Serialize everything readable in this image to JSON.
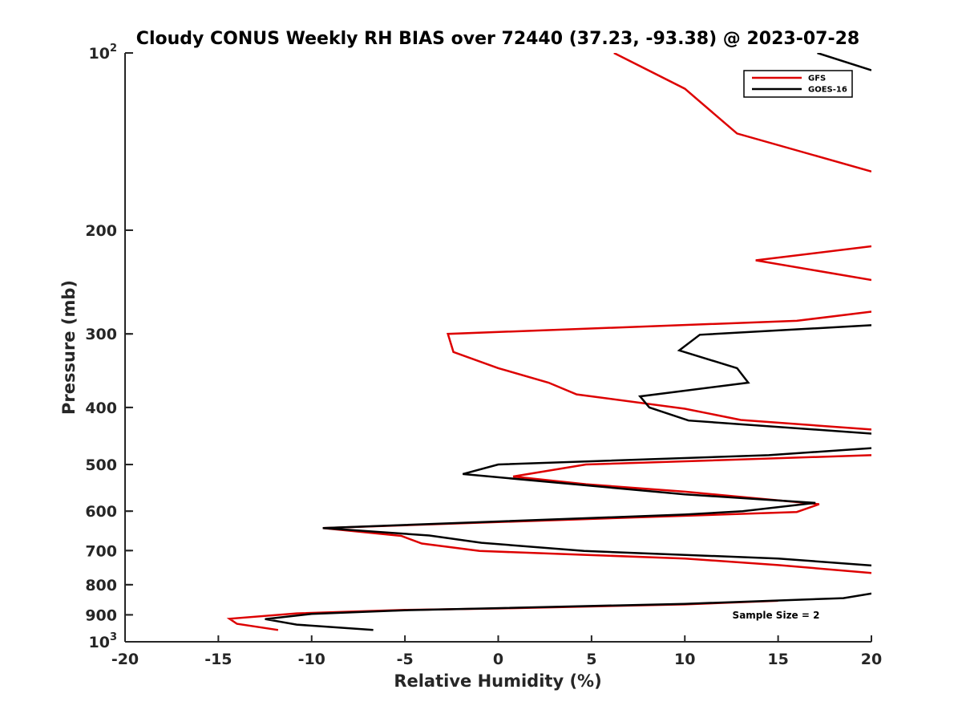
{
  "chart_data": {
    "type": "line",
    "title": "Cloudy CONUS Weekly RH BIAS over 72440 (37.23, -93.38) @ 2023-07-28",
    "xlabel": "Relative Humidity (%)",
    "ylabel": "Pressure (mb)",
    "xlim": [
      -20,
      20
    ],
    "ylim": [
      100,
      1000
    ],
    "y_scale": "log",
    "y_reversed": true,
    "xticks": [
      -20,
      -15,
      -10,
      -5,
      0,
      5,
      10,
      15,
      20
    ],
    "yticks": [
      {
        "value": 100,
        "label": "10",
        "sup": "2"
      },
      {
        "value": 200,
        "label": "200",
        "sup": ""
      },
      {
        "value": 300,
        "label": "300",
        "sup": ""
      },
      {
        "value": 400,
        "label": "400",
        "sup": ""
      },
      {
        "value": 500,
        "label": "500",
        "sup": ""
      },
      {
        "value": 600,
        "label": "600",
        "sup": ""
      },
      {
        "value": 700,
        "label": "700",
        "sup": ""
      },
      {
        "value": 800,
        "label": "800",
        "sup": ""
      },
      {
        "value": 900,
        "label": "900",
        "sup": ""
      },
      {
        "value": 1000,
        "label": "10",
        "sup": "3"
      }
    ],
    "grid": false,
    "legend_position": "top-right",
    "annotation": "Sample Size = 2",
    "series": [
      {
        "name": "GFS",
        "color": "#dd0000",
        "points": [
          [
            6.2,
            100
          ],
          [
            10,
            115
          ],
          [
            12.8,
            137
          ],
          [
            20,
            159
          ],
          null,
          [
            20,
            213
          ],
          [
            13.8,
            225
          ],
          [
            20,
            243
          ],
          null,
          [
            20,
            275
          ],
          [
            16,
            285
          ],
          [
            -2.7,
            300
          ],
          [
            -2.4,
            322
          ],
          [
            0,
            343
          ],
          [
            2.7,
            363
          ],
          [
            4.2,
            380
          ],
          [
            10,
            402
          ],
          [
            13,
            420
          ],
          [
            20,
            436
          ],
          null,
          [
            20,
            482
          ],
          [
            4.7,
            500
          ],
          [
            0.8,
            524
          ],
          [
            4.7,
            540
          ],
          [
            10,
            556
          ],
          [
            17.2,
            584
          ],
          [
            16,
            602
          ],
          [
            -9.4,
            641
          ],
          [
            -5.2,
            661
          ],
          [
            -4.1,
            681
          ],
          [
            -1,
            701
          ],
          [
            10,
            722
          ],
          [
            15,
            741
          ],
          [
            20,
            764
          ],
          null,
          [
            15,
            852
          ],
          [
            10,
            864
          ],
          [
            0,
            878
          ],
          [
            -5,
            883
          ],
          [
            -10.8,
            895
          ],
          [
            -14.4,
            914
          ],
          [
            -14,
            932
          ],
          [
            -11.8,
            955
          ]
        ]
      },
      {
        "name": "GOES-16",
        "color": "#000000",
        "points": [
          [
            17.1,
            100
          ],
          [
            20,
            107
          ],
          null,
          [
            20,
            290
          ],
          [
            10.8,
            301
          ],
          [
            9.7,
            320
          ],
          [
            12.8,
            343
          ],
          [
            13.4,
            363
          ],
          [
            7.6,
            383
          ],
          [
            8.1,
            400
          ],
          [
            10.2,
            421
          ],
          [
            20,
            443
          ],
          null,
          [
            20,
            469
          ],
          [
            14.5,
            482
          ],
          [
            0,
            500
          ],
          [
            -1.9,
            519
          ],
          [
            10,
            562
          ],
          [
            17,
            581
          ],
          [
            13.1,
            600
          ],
          [
            10,
            608
          ],
          [
            -9.4,
            641
          ],
          [
            -3.7,
            660
          ],
          [
            -0.9,
            679
          ],
          [
            4.6,
            701
          ],
          [
            15,
            722
          ],
          [
            20,
            742
          ],
          null,
          [
            20,
            828
          ],
          [
            18.5,
            843
          ],
          [
            10,
            862
          ],
          [
            -5,
            884
          ],
          [
            -10,
            897
          ],
          [
            -12.5,
            915
          ],
          [
            -10.8,
            935
          ],
          [
            -6.7,
            955
          ]
        ]
      }
    ]
  }
}
